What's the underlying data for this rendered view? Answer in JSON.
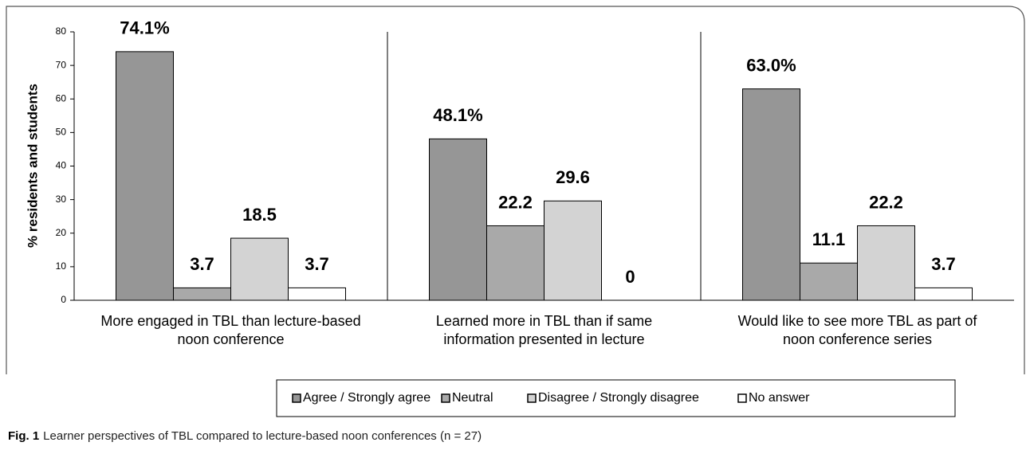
{
  "chart_data": {
    "type": "bar",
    "y_label": "% residents and students",
    "categories": [
      [
        "More engaged in TBL than lecture-based",
        "noon conference"
      ],
      [
        "Learned more in TBL than if same",
        "information presented in lecture"
      ],
      [
        "Would like to see more TBL as part of",
        "noon conference series"
      ]
    ],
    "series": [
      {
        "name": "Agree / Strongly agree",
        "color": "#969696",
        "values": [
          74.1,
          48.1,
          63.0
        ],
        "value_labels": [
          "74.1%",
          "48.1%",
          "63.0%"
        ]
      },
      {
        "name": "Neutral",
        "color": "#a9a9a9",
        "values": [
          3.7,
          22.2,
          11.1
        ],
        "value_labels": [
          "3.7",
          "22.2",
          "11.1"
        ]
      },
      {
        "name": "Disagree / Strongly disagree",
        "color": "#d3d3d3",
        "values": [
          18.5,
          29.6,
          22.2
        ],
        "value_labels": [
          "18.5",
          "29.6",
          "22.2"
        ]
      },
      {
        "name": "No answer",
        "color": "#ffffff",
        "values": [
          3.7,
          0,
          3.7
        ],
        "value_labels": [
          "3.7",
          "0",
          "3.7"
        ]
      }
    ],
    "ylim": [
      0,
      80
    ],
    "yticks": [
      0,
      10,
      20,
      30,
      40,
      50,
      60,
      70,
      80
    ],
    "legend": "bottom",
    "caption_label": "Fig. 1",
    "caption": "Learner perspectives of TBL compared to lecture-based noon conferences (n = 27)"
  }
}
